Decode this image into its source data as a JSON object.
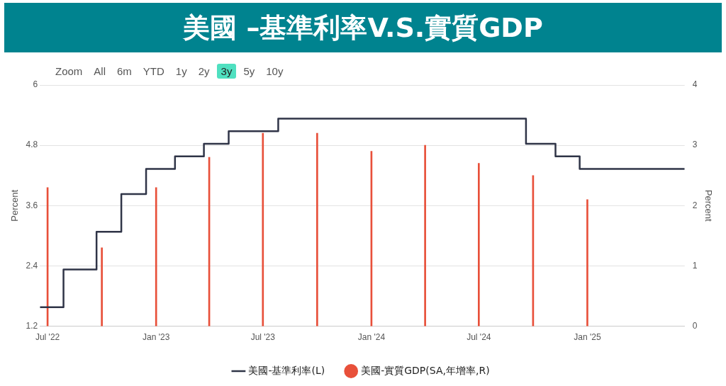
{
  "chart_data": {
    "type": "step",
    "title": "美國 –基準利率V.S.實質GDP",
    "annotations": [
      "Zoom",
      "All",
      "6m",
      "YTD",
      "1y",
      "2y",
      "3y",
      "5y",
      "10y"
    ],
    "ylabel": "Percent",
    "y2label": "Percent",
    "xlim": [
      "2022-06-18",
      "2025-06-15"
    ],
    "xticks": [
      {
        "value": "2022-07-01",
        "label": "Jul '22"
      },
      {
        "value": "2023-01-01",
        "label": "Jan '23"
      },
      {
        "value": "2023-07-01",
        "label": "Jul '23"
      },
      {
        "value": "2024-01-01",
        "label": "Jan '24"
      },
      {
        "value": "2024-07-01",
        "label": "Jul '24"
      },
      {
        "value": "2025-01-01",
        "label": "Jan '25"
      }
    ],
    "ylim": [
      1.2,
      6
    ],
    "yticks": [
      1.2,
      2.4,
      3.6,
      4.8,
      6
    ],
    "y2lim": [
      0,
      4
    ],
    "y2ticks": [
      0,
      1,
      2,
      3,
      4
    ],
    "grid": "y",
    "legend": "bottom",
    "marker": "none",
    "series": [
      {
        "name": "美國-基準利率(L)",
        "color": "#2f3447",
        "x": [
          "2022-06-18",
          "2022-07-28",
          "2022-09-22",
          "2022-11-03",
          "2022-12-15",
          "2023-02-02",
          "2023-03-23",
          "2023-05-04",
          "2023-07-27",
          "2024-09-19",
          "2024-11-08",
          "2024-12-19",
          "2025-06-15"
        ],
        "values": [
          1.58,
          2.33,
          3.08,
          3.83,
          4.33,
          4.58,
          4.83,
          5.08,
          5.33,
          4.83,
          4.58,
          4.33,
          4.33
        ]
      },
      {
        "name": "美國-實質GDP(SA,年增率,R)",
        "type": "bar",
        "axis": "y2",
        "color": "#e8503a",
        "x": [
          "2022-07-01",
          "2022-10-01",
          "2023-01-01",
          "2023-04-01",
          "2023-07-01",
          "2023-10-01",
          "2024-01-01",
          "2024-04-01",
          "2024-07-01",
          "2024-10-01",
          "2025-01-01"
        ],
        "values": [
          2.3,
          1.3,
          2.3,
          2.8,
          3.2,
          3.2,
          2.9,
          3.0,
          2.7,
          2.5,
          2.1
        ]
      }
    ]
  }
}
